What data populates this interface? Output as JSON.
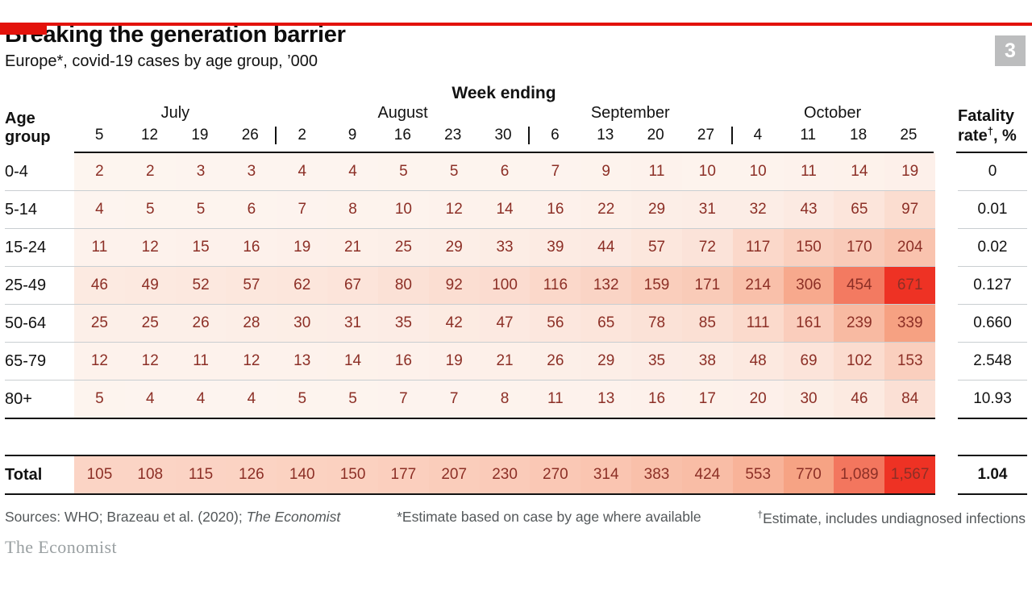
{
  "meta": {
    "badge": "3",
    "colors": {
      "brand_red": "#e3120b",
      "badge_gray": "#bcbdbe",
      "number_maroon": "#8c2f26",
      "rule_dark": "#121212",
      "rule_light": "#c9ced1",
      "footnote_gray": "#54585a",
      "logo_gray": "#9aa0a2"
    }
  },
  "header": {
    "title": "Breaking the generation barrier",
    "subtitle": "Europe*, covid-19 cases by age group, ’000"
  },
  "table": {
    "week_ending_label": "Week ending",
    "age_group_label_line1": "Age",
    "age_group_label_line2": "group",
    "fatality_label_line1": "Fatality",
    "fatality_label_line2_pre": "rate",
    "fatality_label_line2_sup": "†",
    "fatality_label_line2_post": ", %",
    "months": [
      {
        "label": "July",
        "span": 4
      },
      {
        "label": "August",
        "span": 5
      },
      {
        "label": "September",
        "span": 4
      },
      {
        "label": "October",
        "span": 4
      }
    ],
    "dates": [
      "5",
      "12",
      "19",
      "26",
      "2",
      "9",
      "16",
      "23",
      "30",
      "6",
      "13",
      "20",
      "27",
      "4",
      "11",
      "18",
      "25"
    ],
    "rows": [
      {
        "label": "0-4",
        "values": [
          2,
          2,
          3,
          3,
          4,
          4,
          5,
          5,
          6,
          7,
          9,
          11,
          10,
          10,
          11,
          14,
          19
        ],
        "fatality": "0"
      },
      {
        "label": "5-14",
        "values": [
          4,
          5,
          5,
          6,
          7,
          8,
          10,
          12,
          14,
          16,
          22,
          29,
          31,
          32,
          43,
          65,
          97
        ],
        "fatality": "0.01"
      },
      {
        "label": "15-24",
        "values": [
          11,
          12,
          15,
          16,
          19,
          21,
          25,
          29,
          33,
          39,
          44,
          57,
          72,
          117,
          150,
          170,
          204
        ],
        "fatality": "0.02"
      },
      {
        "label": "25-49",
        "values": [
          46,
          49,
          52,
          57,
          62,
          67,
          80,
          92,
          100,
          116,
          132,
          159,
          171,
          214,
          306,
          454,
          671
        ],
        "fatality": "0.127"
      },
      {
        "label": "50-64",
        "values": [
          25,
          25,
          26,
          28,
          30,
          31,
          35,
          42,
          47,
          56,
          65,
          78,
          85,
          111,
          161,
          239,
          339
        ],
        "fatality": "0.660"
      },
      {
        "label": "65-79",
        "values": [
          12,
          12,
          11,
          12,
          13,
          14,
          16,
          19,
          21,
          26,
          29,
          35,
          38,
          48,
          69,
          102,
          153
        ],
        "fatality": "2.548"
      },
      {
        "label": "80+",
        "values": [
          5,
          4,
          4,
          4,
          5,
          5,
          7,
          7,
          8,
          11,
          13,
          16,
          17,
          20,
          30,
          46,
          84
        ],
        "fatality": "10.93"
      }
    ],
    "total": {
      "label": "Total",
      "values": [
        105,
        108,
        115,
        126,
        140,
        150,
        177,
        207,
        230,
        270,
        314,
        383,
        424,
        553,
        770,
        1089,
        1567
      ],
      "fatality": "1.04"
    },
    "heatmap": {
      "age_low": "#fdf5f0",
      "total_low": "#fcdccf",
      "mid": "#f6a283",
      "high": "#ee3224"
    }
  },
  "chart_data": {
    "type": "heatmap",
    "title": "Breaking the generation barrier",
    "subtitle": "Europe*, covid-19 cases by age group, '000",
    "x_header": "Week ending",
    "x_groups": [
      "July",
      "August",
      "September",
      "October"
    ],
    "x": [
      "Jul 5",
      "Jul 12",
      "Jul 19",
      "Jul 26",
      "Aug 2",
      "Aug 9",
      "Aug 16",
      "Aug 23",
      "Aug 30",
      "Sep 6",
      "Sep 13",
      "Sep 20",
      "Sep 27",
      "Oct 4",
      "Oct 11",
      "Oct 18",
      "Oct 25"
    ],
    "categories": [
      "0-4",
      "5-14",
      "15-24",
      "25-49",
      "50-64",
      "65-79",
      "80+"
    ],
    "series": [
      {
        "name": "0-4",
        "values": [
          2,
          2,
          3,
          3,
          4,
          4,
          5,
          5,
          6,
          7,
          9,
          11,
          10,
          10,
          11,
          14,
          19
        ],
        "fatality_rate_pct": 0
      },
      {
        "name": "5-14",
        "values": [
          4,
          5,
          5,
          6,
          7,
          8,
          10,
          12,
          14,
          16,
          22,
          29,
          31,
          32,
          43,
          65,
          97
        ],
        "fatality_rate_pct": 0.01
      },
      {
        "name": "15-24",
        "values": [
          11,
          12,
          15,
          16,
          19,
          21,
          25,
          29,
          33,
          39,
          44,
          57,
          72,
          117,
          150,
          170,
          204
        ],
        "fatality_rate_pct": 0.02
      },
      {
        "name": "25-49",
        "values": [
          46,
          49,
          52,
          57,
          62,
          67,
          80,
          92,
          100,
          116,
          132,
          159,
          171,
          214,
          306,
          454,
          671
        ],
        "fatality_rate_pct": 0.127
      },
      {
        "name": "50-64",
        "values": [
          25,
          25,
          26,
          28,
          30,
          31,
          35,
          42,
          47,
          56,
          65,
          78,
          85,
          111,
          161,
          239,
          339
        ],
        "fatality_rate_pct": 0.66
      },
      {
        "name": "65-79",
        "values": [
          12,
          12,
          11,
          12,
          13,
          14,
          16,
          19,
          21,
          26,
          29,
          35,
          38,
          48,
          69,
          102,
          153
        ],
        "fatality_rate_pct": 2.548
      },
      {
        "name": "80+",
        "values": [
          5,
          4,
          4,
          4,
          5,
          5,
          7,
          7,
          8,
          11,
          13,
          16,
          17,
          20,
          30,
          46,
          84
        ],
        "fatality_rate_pct": 10.93
      }
    ],
    "total": {
      "values": [
        105,
        108,
        115,
        126,
        140,
        150,
        177,
        207,
        230,
        270,
        314,
        383,
        424,
        553,
        770,
        1089,
        1567
      ],
      "fatality_rate_pct": 1.04
    },
    "legend_position": "none",
    "grid": false
  },
  "footer": {
    "sources_plain": "Sources: WHO; Brazeau et al. (2020); ",
    "sources_italic": "The Economist",
    "note1": "*Estimate based on case by age where available",
    "note2_sup": "†",
    "note2": "Estimate, includes undiagnosed infections",
    "logo": "The Economist"
  }
}
